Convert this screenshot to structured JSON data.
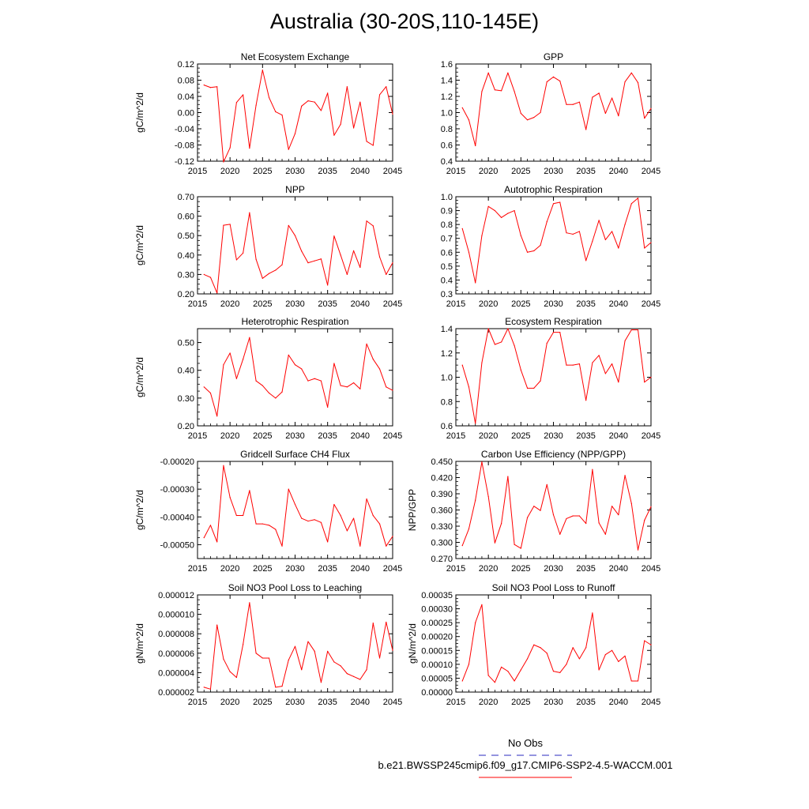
{
  "title": "Australia (30-20S,110-145E)",
  "colors": {
    "model": "#ff0000",
    "obs": "#5555cc",
    "frame": "#000000"
  },
  "legend": {
    "obs_label": "No Obs",
    "model_label": "b.e21.BWSSP245cmip6.f09_g17.CMIP6-SSP2-4.5-WACCM.001"
  },
  "chart_data": [
    {
      "type": "line",
      "title": "Net Ecosystem Exchange",
      "ylabel": "gC/m^2/d",
      "xlim": [
        2015,
        2045
      ],
      "ylim": [
        -0.12,
        0.12
      ],
      "xticks": [
        "2015",
        "2020",
        "2025",
        "2030",
        "2035",
        "2040",
        "2045"
      ],
      "yticks": [
        "-0.12",
        "-0.08",
        "-0.04",
        "0.00",
        "0.04",
        "0.08",
        "0.12"
      ],
      "x": [
        2016,
        2017,
        2018,
        2019,
        2020,
        2021,
        2022,
        2023,
        2024,
        2025,
        2026,
        2027,
        2028,
        2029,
        2030,
        2031,
        2032,
        2033,
        2034,
        2035,
        2036,
        2037,
        2038,
        2039,
        2040,
        2041,
        2042,
        2043,
        2044,
        2045
      ],
      "series": [
        {
          "values": [
            0.068,
            0.062,
            0.064,
            -0.122,
            -0.087,
            0.025,
            0.044,
            -0.088,
            0.018,
            0.105,
            0.037,
            0.002,
            -0.006,
            -0.091,
            -0.052,
            0.016,
            0.029,
            0.026,
            0.005,
            0.048,
            -0.056,
            -0.029,
            0.064,
            -0.038,
            0.026,
            -0.071,
            -0.081,
            0.044,
            0.064,
            -0.004
          ]
        }
      ]
    },
    {
      "type": "line",
      "title": "GPP",
      "ylabel": "",
      "xlim": [
        2015,
        2045
      ],
      "ylim": [
        0.4,
        1.6
      ],
      "xticks": [
        "2015",
        "2020",
        "2025",
        "2030",
        "2035",
        "2040",
        "2045"
      ],
      "yticks": [
        "0.4",
        "0.6",
        "0.8",
        "1.0",
        "1.2",
        "1.4",
        "1.6"
      ],
      "x": [
        2016,
        2017,
        2018,
        2019,
        2020,
        2021,
        2022,
        2023,
        2024,
        2025,
        2026,
        2027,
        2028,
        2029,
        2030,
        2031,
        2032,
        2033,
        2034,
        2035,
        2036,
        2037,
        2038,
        2039,
        2040,
        2041,
        2042,
        2043,
        2044,
        2045
      ],
      "series": [
        {
          "values": [
            1.06,
            0.91,
            0.59,
            1.26,
            1.49,
            1.28,
            1.27,
            1.49,
            1.26,
            0.99,
            0.91,
            0.94,
            1.0,
            1.38,
            1.44,
            1.39,
            1.1,
            1.1,
            1.13,
            0.79,
            1.19,
            1.24,
            0.99,
            1.18,
            0.96,
            1.38,
            1.49,
            1.37,
            0.93,
            1.05
          ]
        }
      ]
    },
    {
      "type": "line",
      "title": "NPP",
      "ylabel": "gC/m^2/d",
      "xlim": [
        2015,
        2045
      ],
      "ylim": [
        0.2,
        0.7
      ],
      "xticks": [
        "2015",
        "2020",
        "2025",
        "2030",
        "2035",
        "2040",
        "2045"
      ],
      "yticks": [
        "0.20",
        "0.30",
        "0.40",
        "0.50",
        "0.60",
        "0.70"
      ],
      "x": [
        2016,
        2017,
        2018,
        2019,
        2020,
        2021,
        2022,
        2023,
        2024,
        2025,
        2026,
        2027,
        2028,
        2029,
        2030,
        2031,
        2032,
        2033,
        2034,
        2035,
        2036,
        2037,
        2038,
        2039,
        2040,
        2041,
        2042,
        2043,
        2044,
        2045
      ],
      "series": [
        {
          "values": [
            0.3,
            0.285,
            0.205,
            0.553,
            0.558,
            0.375,
            0.41,
            0.618,
            0.378,
            0.28,
            0.305,
            0.322,
            0.35,
            0.552,
            0.5,
            0.42,
            0.36,
            0.37,
            0.38,
            0.245,
            0.498,
            0.4,
            0.3,
            0.422,
            0.336,
            0.575,
            0.55,
            0.39,
            0.3,
            0.36
          ]
        }
      ]
    },
    {
      "type": "line",
      "title": "Autotrophic Respiration",
      "ylabel": "",
      "xlim": [
        2015,
        2045
      ],
      "ylim": [
        0.3,
        1.0
      ],
      "xticks": [
        "2015",
        "2020",
        "2025",
        "2030",
        "2035",
        "2040",
        "2045"
      ],
      "yticks": [
        "0.3",
        "0.4",
        "0.5",
        "0.6",
        "0.7",
        "0.8",
        "0.9",
        "1.0"
      ],
      "x": [
        2016,
        2017,
        2018,
        2019,
        2020,
        2021,
        2022,
        2023,
        2024,
        2025,
        2026,
        2027,
        2028,
        2029,
        2030,
        2031,
        2032,
        2033,
        2034,
        2035,
        2036,
        2037,
        2038,
        2039,
        2040,
        2041,
        2042,
        2043,
        2044,
        2045
      ],
      "series": [
        {
          "values": [
            0.77,
            0.6,
            0.38,
            0.72,
            0.93,
            0.9,
            0.85,
            0.88,
            0.9,
            0.72,
            0.6,
            0.61,
            0.65,
            0.82,
            0.95,
            0.96,
            0.74,
            0.73,
            0.75,
            0.54,
            0.68,
            0.83,
            0.69,
            0.75,
            0.63,
            0.8,
            0.95,
            0.99,
            0.63,
            0.67
          ]
        }
      ]
    },
    {
      "type": "line",
      "title": "Heterotrophic Respiration",
      "ylabel": "gC/m^2/d",
      "xlim": [
        2015,
        2045
      ],
      "ylim": [
        0.2,
        0.55
      ],
      "xticks": [
        "2015",
        "2020",
        "2025",
        "2030",
        "2035",
        "2040",
        "2045"
      ],
      "yticks": [
        "0.20",
        "0.30",
        "0.40",
        "0.50"
      ],
      "x": [
        2016,
        2017,
        2018,
        2019,
        2020,
        2021,
        2022,
        2023,
        2024,
        2025,
        2026,
        2027,
        2028,
        2029,
        2030,
        2031,
        2032,
        2033,
        2034,
        2035,
        2036,
        2037,
        2038,
        2039,
        2040,
        2041,
        2042,
        2043,
        2044,
        2045
      ],
      "series": [
        {
          "values": [
            0.34,
            0.318,
            0.235,
            0.42,
            0.462,
            0.37,
            0.44,
            0.518,
            0.362,
            0.345,
            0.318,
            0.3,
            0.322,
            0.455,
            0.42,
            0.405,
            0.362,
            0.37,
            0.362,
            0.267,
            0.425,
            0.345,
            0.34,
            0.355,
            0.333,
            0.495,
            0.44,
            0.405,
            0.34,
            0.328
          ]
        }
      ]
    },
    {
      "type": "line",
      "title": "Ecosystem Respiration",
      "ylabel": "",
      "xlim": [
        2015,
        2045
      ],
      "ylim": [
        0.6,
        1.4
      ],
      "xticks": [
        "2015",
        "2020",
        "2025",
        "2030",
        "2035",
        "2040",
        "2045"
      ],
      "yticks": [
        "0.6",
        "0.8",
        "1.0",
        "1.2",
        "1.4"
      ],
      "x": [
        2016,
        2017,
        2018,
        2019,
        2020,
        2021,
        2022,
        2023,
        2024,
        2025,
        2026,
        2027,
        2028,
        2029,
        2030,
        2031,
        2032,
        2033,
        2034,
        2035,
        2036,
        2037,
        2038,
        2039,
        2040,
        2041,
        2042,
        2043,
        2044,
        2045
      ],
      "series": [
        {
          "values": [
            1.1,
            0.92,
            0.62,
            1.12,
            1.4,
            1.27,
            1.29,
            1.4,
            1.26,
            1.06,
            0.91,
            0.91,
            0.97,
            1.28,
            1.37,
            1.37,
            1.1,
            1.1,
            1.11,
            0.81,
            1.12,
            1.18,
            1.03,
            1.11,
            0.96,
            1.3,
            1.39,
            1.39,
            0.96,
            1.0
          ]
        }
      ]
    },
    {
      "type": "line",
      "title": "Gridcell Surface CH4 Flux",
      "ylabel": "gC/m^2/d",
      "xlim": [
        2015,
        2045
      ],
      "ylim": [
        -0.00055,
        -0.0002
      ],
      "xticks": [
        "2015",
        "2020",
        "2025",
        "2030",
        "2035",
        "2040",
        "2045"
      ],
      "yticks": [
        "-0.00050",
        "-0.00040",
        "-0.00030",
        "-0.00020"
      ],
      "x": [
        2016,
        2017,
        2018,
        2019,
        2020,
        2021,
        2022,
        2023,
        2024,
        2025,
        2026,
        2027,
        2028,
        2029,
        2030,
        2031,
        2032,
        2033,
        2034,
        2035,
        2036,
        2037,
        2038,
        2039,
        2040,
        2041,
        2042,
        2043,
        2044,
        2045
      ],
      "series": [
        {
          "values": [
            -0.000475,
            -0.00043,
            -0.00049,
            -0.000215,
            -0.00033,
            -0.000395,
            -0.000395,
            -0.000305,
            -0.000425,
            -0.000425,
            -0.00043,
            -0.000445,
            -0.000505,
            -0.0003,
            -0.000355,
            -0.000405,
            -0.000415,
            -0.00041,
            -0.00042,
            -0.00049,
            -0.000355,
            -0.000395,
            -0.00045,
            -0.000405,
            -0.000505,
            -0.000335,
            -0.000395,
            -0.000425,
            -0.000505,
            -0.00047
          ]
        }
      ]
    },
    {
      "type": "line",
      "title": "Carbon Use Efficiency (NPP/GPP)",
      "ylabel": "NPP/GPP",
      "xlim": [
        2015,
        2045
      ],
      "ylim": [
        0.27,
        0.45
      ],
      "xticks": [
        "2015",
        "2020",
        "2025",
        "2030",
        "2035",
        "2040",
        "2045"
      ],
      "yticks": [
        "0.270",
        "0.300",
        "0.330",
        "0.360",
        "0.390",
        "0.420",
        "0.450"
      ],
      "x": [
        2016,
        2017,
        2018,
        2019,
        2020,
        2021,
        2022,
        2023,
        2024,
        2025,
        2026,
        2027,
        2028,
        2029,
        2030,
        2031,
        2032,
        2033,
        2034,
        2035,
        2036,
        2037,
        2038,
        2039,
        2040,
        2041,
        2042,
        2043,
        2044,
        2045
      ],
      "series": [
        {
          "values": [
            0.294,
            0.325,
            0.378,
            0.449,
            0.385,
            0.299,
            0.335,
            0.422,
            0.296,
            0.289,
            0.346,
            0.367,
            0.359,
            0.407,
            0.351,
            0.315,
            0.344,
            0.349,
            0.349,
            0.335,
            0.435,
            0.336,
            0.315,
            0.367,
            0.351,
            0.424,
            0.372,
            0.286,
            0.341,
            0.366
          ]
        }
      ]
    },
    {
      "type": "line",
      "title": "Soil NO3 Pool Loss to Leaching",
      "ylabel": "gN/m^2/d",
      "xlim": [
        2015,
        2045
      ],
      "ylim": [
        2e-06,
        1.2e-05
      ],
      "xticks": [
        "2015",
        "2020",
        "2025",
        "2030",
        "2035",
        "2040",
        "2045"
      ],
      "yticks": [
        "0.000002",
        "0.000004",
        "0.000006",
        "0.000008",
        "0.000010",
        "0.000012"
      ],
      "x": [
        2016,
        2017,
        2018,
        2019,
        2020,
        2021,
        2022,
        2023,
        2024,
        2025,
        2026,
        2027,
        2028,
        2029,
        2030,
        2031,
        2032,
        2033,
        2034,
        2035,
        2036,
        2037,
        2038,
        2039,
        2040,
        2041,
        2042,
        2043,
        2044,
        2045
      ],
      "series": [
        {
          "values": [
            2.5e-06,
            2.3e-06,
            8.9e-06,
            5.4e-06,
            4.1e-06,
            3.5e-06,
            6.9e-06,
            1.12e-05,
            6e-06,
            5.5e-06,
            5.5e-06,
            2.5e-06,
            2.6e-06,
            5.3e-06,
            6.7e-06,
            4.3e-06,
            7.2e-06,
            6.2e-06,
            3e-06,
            6.2e-06,
            5.1e-06,
            4.7e-06,
            3.9e-06,
            3.6e-06,
            3.3e-06,
            4.3e-06,
            9.1e-06,
            5.5e-06,
            9.2e-06,
            6.3e-06
          ]
        }
      ]
    },
    {
      "type": "line",
      "title": "Soil NO3 Pool Loss to Runoff",
      "ylabel": "gN/m^2/d",
      "xlim": [
        2015,
        2045
      ],
      "ylim": [
        0,
        0.00035
      ],
      "xticks": [
        "2015",
        "2020",
        "2025",
        "2030",
        "2035",
        "2040",
        "2045"
      ],
      "yticks": [
        "0.00000",
        "0.00005",
        "0.00010",
        "0.00015",
        "0.00020",
        "0.00025",
        "0.00030",
        "0.00035"
      ],
      "x": [
        2016,
        2017,
        2018,
        2019,
        2020,
        2021,
        2022,
        2023,
        2024,
        2025,
        2026,
        2027,
        2028,
        2029,
        2030,
        2031,
        2032,
        2033,
        2034,
        2035,
        2036,
        2037,
        2038,
        2039,
        2040,
        2041,
        2042,
        2043,
        2044,
        2045
      ],
      "series": [
        {
          "values": [
            4e-05,
            0.0001,
            0.00025,
            0.000315,
            6e-05,
            3.5e-05,
            9e-05,
            7.5e-05,
            4e-05,
            8e-05,
            0.00012,
            0.00017,
            0.00016,
            0.00014,
            7.5e-05,
            7e-05,
            0.0001,
            0.00016,
            0.00012,
            0.00016,
            0.000285,
            8e-05,
            0.000135,
            0.00015,
            0.00011,
            0.00013,
            4e-05,
            4e-05,
            0.000185,
            0.00017
          ]
        }
      ]
    }
  ]
}
